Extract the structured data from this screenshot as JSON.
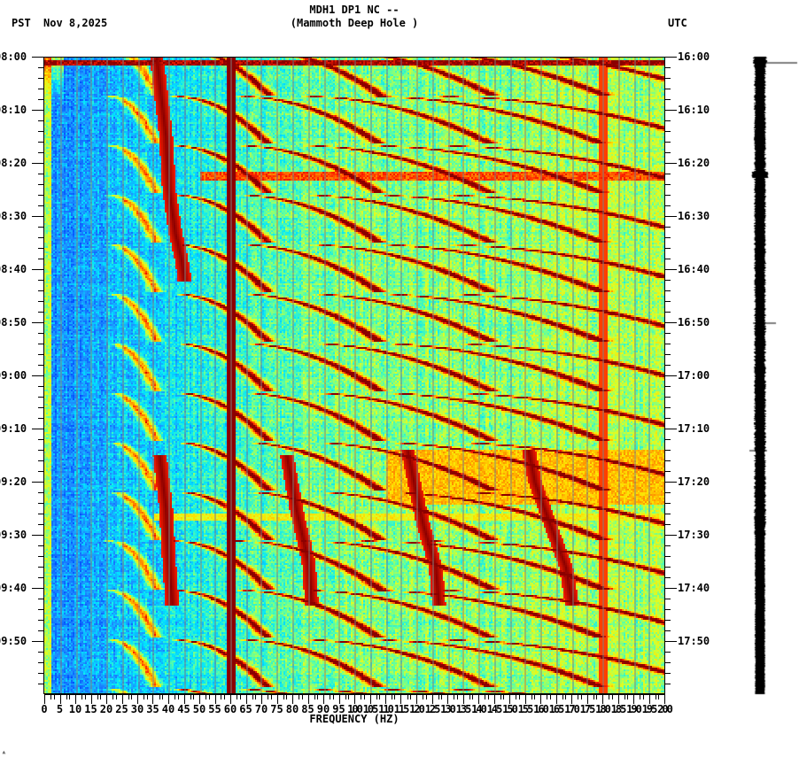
{
  "header": {
    "station_line": "MDH1 DP1 NC --",
    "station_name": "(Mammoth Deep Hole )",
    "left_timezone": "PST",
    "date": "Nov 8,2025",
    "right_timezone": "UTC"
  },
  "footer": {
    "corner_mark": "ᴬ"
  },
  "chart_data": {
    "type": "heatmap",
    "subtype": "spectrogram",
    "title": "MDH1 DP1 NC -- (Mammoth Deep Hole )",
    "xlabel": "FREQUENCY (HZ)",
    "ylabel_left": "PST",
    "ylabel_right": "UTC",
    "xlim": [
      0,
      200
    ],
    "x_ticks": [
      0,
      5,
      10,
      15,
      20,
      25,
      30,
      35,
      40,
      45,
      50,
      55,
      60,
      65,
      70,
      75,
      80,
      85,
      90,
      95,
      100,
      105,
      110,
      115,
      120,
      125,
      130,
      135,
      140,
      145,
      150,
      155,
      160,
      165,
      170,
      175,
      180,
      185,
      190,
      195,
      200
    ],
    "x_tick_labels": [
      "0",
      "5",
      "10",
      "15",
      "20",
      "25",
      "30",
      "35",
      "40",
      "45",
      "50",
      "55",
      "60",
      "65",
      "70",
      "75",
      "80",
      "85",
      "90",
      "95",
      "100",
      "105",
      "110",
      "115",
      "120",
      "125",
      "130",
      "135",
      "140",
      "145",
      "150",
      "155",
      "160",
      "165",
      "170",
      "175",
      "180",
      "185",
      "190",
      "195",
      "200"
    ],
    "y_time_range_minutes": 120,
    "y_left_ticks": [
      "08:00",
      "08:10",
      "08:20",
      "08:30",
      "08:40",
      "08:50",
      "09:00",
      "09:10",
      "09:20",
      "09:30",
      "09:40",
      "09:50"
    ],
    "y_right_ticks": [
      "16:00",
      "16:10",
      "16:20",
      "16:30",
      "16:40",
      "16:50",
      "17:00",
      "17:10",
      "17:20",
      "17:30",
      "17:40",
      "17:50"
    ],
    "minor_tick_interval_minutes": 2,
    "colormap": "jet",
    "colormap_stops": [
      "#0050ff",
      "#1e8cff",
      "#00e5ff",
      "#60ff9f",
      "#d8ff2a",
      "#ffe000",
      "#ff8c00",
      "#ff2000",
      "#8b0000"
    ],
    "grid": {
      "vertical_lines_every_hz": 5,
      "color": "#7f7f7f"
    },
    "features": {
      "constant_lines": [
        {
          "freq_hz": 60,
          "intensity": 1.0,
          "label": "60 Hz power line"
        },
        {
          "freq_hz": 180,
          "intensity": 0.55
        }
      ],
      "glide_arcs": {
        "description": "repeating upward-gliding harmonic arcs",
        "period_minutes": 9.3,
        "start_minute": -2,
        "harmonics_fundamental_hz": [
          30,
          60,
          90,
          120
        ],
        "glide_duration_minutes": 9
      },
      "tremor_tracks": [
        {
          "points_min_hz": [
            [
              0,
              36
            ],
            [
              5,
              37
            ],
            [
              15,
              39
            ],
            [
              25,
              40
            ],
            [
              33,
              42
            ],
            [
              38,
              44
            ],
            [
              42,
              45
            ]
          ]
        },
        {
          "points_min_hz": [
            [
              75,
              37
            ],
            [
              85,
              39
            ],
            [
              95,
              40
            ],
            [
              103,
              41
            ]
          ]
        },
        {
          "points_min_hz": [
            [
              75,
              78
            ],
            [
              85,
              81
            ],
            [
              95,
              85
            ],
            [
              103,
              86
            ]
          ]
        },
        {
          "points_min_hz": [
            [
              74,
              117
            ],
            [
              80,
              119
            ],
            [
              88,
              122
            ],
            [
              96,
              126
            ],
            [
              103,
              127
            ]
          ]
        },
        {
          "points_min_hz": [
            [
              74,
              156
            ],
            [
              80,
              158
            ],
            [
              88,
              163
            ],
            [
              96,
              168
            ],
            [
              103,
              170
            ]
          ]
        }
      ],
      "horizontal_bands": [
        {
          "start_min": 0.5,
          "end_min": 1.5,
          "hz_from": 0,
          "hz_to": 200,
          "intensity": 0.95
        },
        {
          "start_min": 21.5,
          "end_min": 23,
          "hz_from": 50,
          "hz_to": 200,
          "intensity": 0.8
        },
        {
          "start_min": 74,
          "end_min": 84,
          "hz_from": 110,
          "hz_to": 200,
          "intensity": 0.65
        },
        {
          "start_min": 86,
          "end_min": 87,
          "hz_from": 35,
          "hz_to": 200,
          "intensity": 0.55
        }
      ]
    }
  },
  "seismogram": {
    "label": "waveform trace",
    "tick_marks_minutes": [
      1,
      50,
      74
    ]
  }
}
